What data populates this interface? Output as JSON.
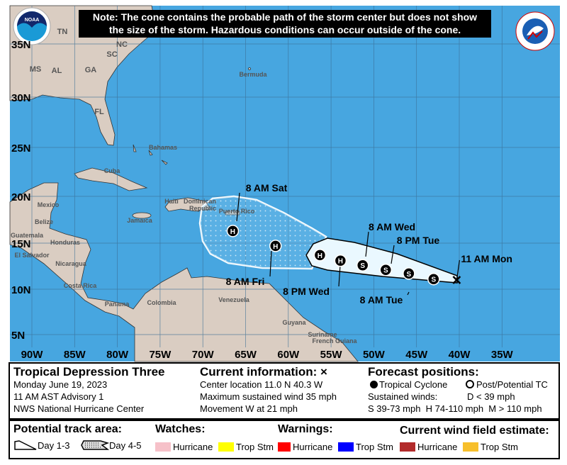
{
  "note": {
    "line1": "Note: The cone contains the probable path of the storm center but does not show",
    "line2": "the size of the storm. Hazardous conditions can occur outside of the cone."
  },
  "logos": {
    "left": "NOAA",
    "right": "NATIONAL WEATHER SERVICE"
  },
  "map": {
    "colors": {
      "ocean": "#47a6e0",
      "land": "#dacdc2",
      "cone_day13": "#eaf8ff",
      "grid": "#3b6f96"
    },
    "lon_labels": [
      "90W",
      "85W",
      "80W",
      "75W",
      "70W",
      "65W",
      "60W",
      "55W",
      "50W",
      "45W",
      "40W",
      "35W"
    ],
    "lat_labels": [
      "35N",
      "30N",
      "25N",
      "20N",
      "15N",
      "10N",
      "5N"
    ],
    "place_labels": {
      "TN": "TN",
      "NC": "NC",
      "SC": "SC",
      "GA": "GA",
      "AL": "AL",
      "MS": "MS",
      "FL": "FL",
      "bermuda": "Bermuda",
      "bahamas": "Bahamas",
      "cuba": "Cuba",
      "mexico": "Mexico",
      "belize": "Belize",
      "guatemala": "Guatemala",
      "honduras": "Honduras",
      "el_salvador": "El Salvador",
      "nicaragua": "Nicaragua",
      "costa_rica": "Costa Rica",
      "panama": "Panama",
      "colombia": "Colombia",
      "jamaica": "Jamaica",
      "haiti": "Haiti",
      "dominican": "Dominican",
      "republic": "Republic",
      "puerto_rico": "Puerto Rico",
      "venezuela": "Venezuela",
      "guyana": "Guyana",
      "suriname": "Suriname",
      "french_guiana": "French Guiana"
    },
    "current": {
      "lat": 11.0,
      "lon": -40.3,
      "marker": "x",
      "label": "11 AM Mon"
    },
    "forecast": [
      {
        "lat": 11.1,
        "lon": -43.0,
        "type": "S",
        "label": ""
      },
      {
        "lat": 11.7,
        "lon": -45.9,
        "type": "S",
        "label": "8 AM Tue"
      },
      {
        "lat": 12.1,
        "lon": -48.6,
        "type": "S",
        "label": "8 PM Tue"
      },
      {
        "lat": 12.6,
        "lon": -51.3,
        "type": "S",
        "label": "8 AM Wed"
      },
      {
        "lat": 13.1,
        "lon": -53.9,
        "type": "H",
        "label": "8 PM Wed"
      },
      {
        "lat": 13.7,
        "lon": -56.3,
        "type": "H",
        "label": ""
      },
      {
        "lat": 14.7,
        "lon": -61.5,
        "type": "H",
        "label": "8 AM Fri"
      },
      {
        "lat": 16.3,
        "lon": -66.5,
        "type": "H",
        "label": "8 AM Sat"
      }
    ]
  },
  "info": {
    "storm_name": "Tropical Depression Three",
    "date": "Monday June 19, 2023",
    "advisory": "11 AM AST Advisory 1",
    "center": "NWS National Hurricane Center",
    "current_title": "Current information: ",
    "current_mark": "×",
    "location": "Center location 11.0 N 40.3 W",
    "wind": "Maximum sustained wind 35 mph",
    "movement": "Movement W at 21 mph",
    "forecast_title": "Forecast positions:",
    "tc_label": "Tropical Cyclone",
    "post_label": "Post/Potential TC",
    "sustained": "Sustained winds:",
    "d_label": "D < 39 mph",
    "shm_label": "S 39-73 mph  H 74-110 mph  M > 110 mph"
  },
  "legend": {
    "track_title": "Potential track area:",
    "day13": "Day 1-3",
    "day45": "Day 4-5",
    "watches_title": "Watches:",
    "warnings_title": "Warnings:",
    "wind_title": "Current wind field estimate:",
    "watches": [
      {
        "label": "Hurricane",
        "color": "#f6c1c9"
      },
      {
        "label": "Trop Stm",
        "color": "#ffff00"
      }
    ],
    "warnings": [
      {
        "label": "Hurricane",
        "color": "#ff0000"
      },
      {
        "label": "Trop Stm",
        "color": "#0000ff"
      }
    ],
    "wind": [
      {
        "label": "Hurricane",
        "color": "#b22b2b"
      },
      {
        "label": "Trop Stm",
        "color": "#f7bf2b"
      }
    ]
  }
}
